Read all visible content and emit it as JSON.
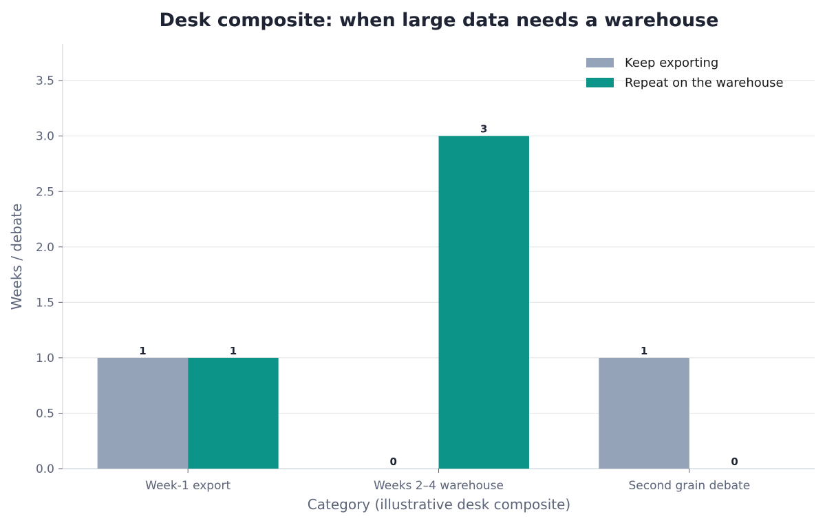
{
  "chart_data": {
    "type": "bar",
    "title": "Desk composite: when large data needs a warehouse",
    "xlabel": "Category (illustrative desk composite)",
    "ylabel": "Weeks / debate",
    "categories": [
      "Week-1 export",
      "Weeks 2–4 warehouse",
      "Second grain debate"
    ],
    "series": [
      {
        "name": "Keep exporting",
        "values": [
          1,
          0,
          1
        ],
        "color": "#94a3b8",
        "labels": [
          "1",
          "0",
          "1"
        ]
      },
      {
        "name": "Repeat on the warehouse",
        "values": [
          1,
          3,
          0
        ],
        "color": "#0d9488",
        "labels": [
          "1",
          "3",
          "0"
        ]
      }
    ],
    "ylim": [
      0,
      3.83
    ],
    "yticks": [
      0.0,
      0.5,
      1.0,
      1.5,
      2.0,
      2.5,
      3.0,
      3.5
    ],
    "ytick_labels": [
      "0.0",
      "0.5",
      "1.0",
      "1.5",
      "2.0",
      "2.5",
      "3.0",
      "3.5"
    ],
    "grid": "horizontal",
    "legend_position": "top-right",
    "colors": {
      "grid": "#e5e7eb",
      "axis": "#d1d5db",
      "text": "#5b6478",
      "title": "#1e2433"
    }
  }
}
